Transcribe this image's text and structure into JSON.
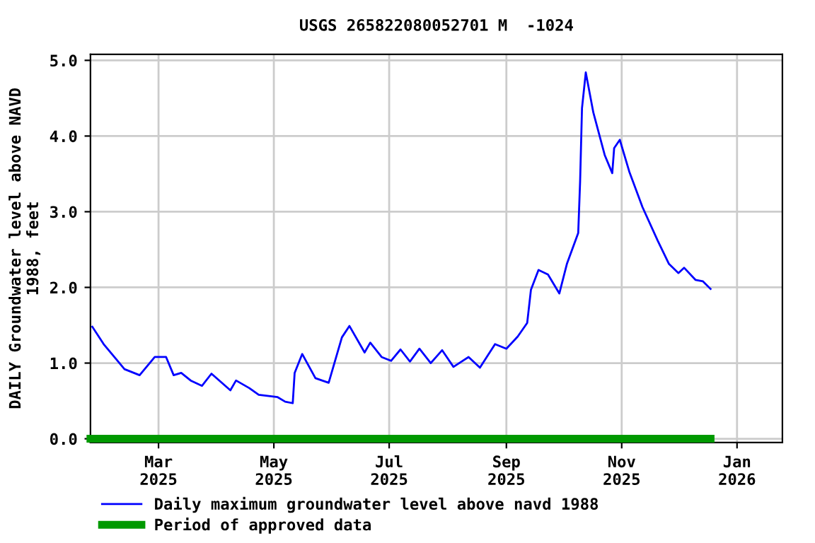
{
  "chart_data": {
    "type": "line",
    "title": "USGS 265822080052701 M  -1024",
    "ylabel": "DAILY Groundwater level above NAVD\n1988, feet",
    "series": [
      {
        "name": "Daily maximum groundwater level above navd 1988",
        "color": "#0000ff",
        "x": [
          "2025-01-25",
          "2025-01-31",
          "2025-02-11",
          "2025-02-19",
          "2025-02-27",
          "2025-03-05",
          "2025-03-09",
          "2025-03-13",
          "2025-03-18",
          "2025-03-24",
          "2025-03-29",
          "2025-04-08",
          "2025-04-11",
          "2025-04-18",
          "2025-04-23",
          "2025-05-03",
          "2025-05-07",
          "2025-05-11",
          "2025-05-12",
          "2025-05-16",
          "2025-05-23",
          "2025-05-30",
          "2025-06-06",
          "2025-06-10",
          "2025-06-18",
          "2025-06-21",
          "2025-06-27",
          "2025-07-02",
          "2025-07-07",
          "2025-07-12",
          "2025-07-17",
          "2025-07-23",
          "2025-07-29",
          "2025-08-04",
          "2025-08-12",
          "2025-08-18",
          "2025-08-26",
          "2025-09-01",
          "2025-09-07",
          "2025-09-12",
          "2025-09-14",
          "2025-09-18",
          "2025-09-23",
          "2025-09-29",
          "2025-10-03",
          "2025-10-09",
          "2025-10-10",
          "2025-10-11",
          "2025-10-13",
          "2025-10-17",
          "2025-10-23",
          "2025-10-27",
          "2025-10-28",
          "2025-10-31",
          "2025-11-05",
          "2025-11-12",
          "2025-11-20",
          "2025-11-26",
          "2025-12-01",
          "2025-12-04",
          "2025-12-10",
          "2025-12-14",
          "2025-12-18"
        ],
        "values": [
          1.48,
          1.25,
          0.92,
          0.84,
          1.08,
          1.08,
          0.84,
          0.87,
          0.77,
          0.7,
          0.86,
          0.64,
          0.77,
          0.67,
          0.58,
          0.55,
          0.49,
          0.47,
          0.87,
          1.12,
          0.8,
          0.74,
          1.34,
          1.49,
          1.14,
          1.27,
          1.08,
          1.03,
          1.18,
          1.02,
          1.19,
          1.0,
          1.17,
          0.95,
          1.08,
          0.94,
          1.25,
          1.19,
          1.35,
          1.53,
          1.97,
          2.23,
          2.17,
          1.92,
          2.31,
          2.72,
          3.4,
          4.37,
          4.84,
          4.31,
          3.75,
          3.51,
          3.84,
          3.95,
          3.53,
          3.06,
          2.62,
          2.31,
          2.19,
          2.26,
          2.1,
          2.08,
          1.98
        ]
      },
      {
        "name": "Period of approved data",
        "color": "#009900",
        "x": [
          "2025-01-24",
          "2025-12-18"
        ],
        "values": [
          0,
          0
        ]
      }
    ],
    "xlim": [
      "2025-01-24",
      "2026-01-25"
    ],
    "xticks": [
      {
        "value": "2025-03-01",
        "label": "Mar\n2025"
      },
      {
        "value": "2025-05-01",
        "label": "May\n2025"
      },
      {
        "value": "2025-07-01",
        "label": "Jul\n2025"
      },
      {
        "value": "2025-09-01",
        "label": "Sep\n2025"
      },
      {
        "value": "2025-11-01",
        "label": "Nov\n2025"
      },
      {
        "value": "2026-01-01",
        "label": "Jan\n2026"
      }
    ],
    "ylim": [
      -0.05,
      5.08
    ],
    "yticks": [
      {
        "value": 0,
        "label": "0.0"
      },
      {
        "value": 1,
        "label": "1.0"
      },
      {
        "value": 2,
        "label": "2.0"
      },
      {
        "value": 3,
        "label": "3.0"
      },
      {
        "value": 4,
        "label": "4.0"
      },
      {
        "value": 5,
        "label": "5.0"
      }
    ],
    "grid": true,
    "legend": "bottom"
  }
}
